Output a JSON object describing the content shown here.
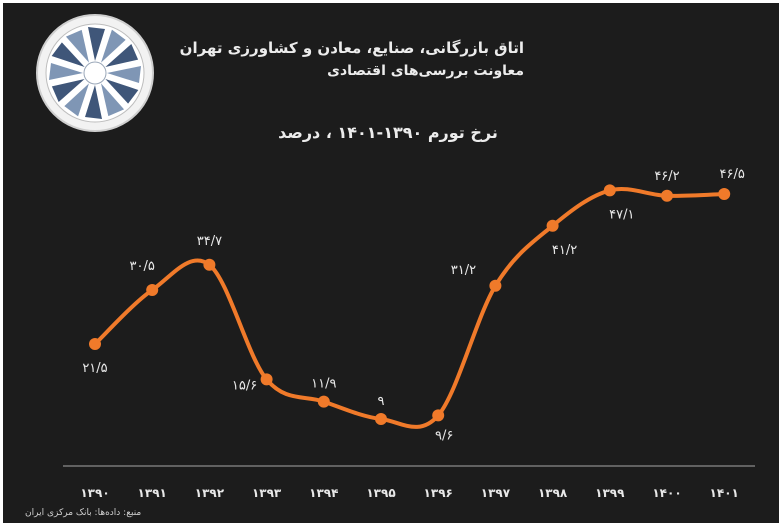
{
  "header": {
    "organization": "اتاق بازرگانی، صنایع، معادن و کشاورزی تهران",
    "department": "معاونت بررسی‌های اقتصادی"
  },
  "logo": {
    "icon": "tehran-chamber-logo-icon"
  },
  "source": "منبع: داده‌ها: بانک مرکزی ایران",
  "colors": {
    "background": "#1c1c1c",
    "line": "#f07a2a",
    "text": "#e8e8e8"
  },
  "chart_data": {
    "type": "line",
    "title": "نرخ تورم ۱۳۹۰-۱۴۰۱ ، درصد",
    "xlabel": "",
    "ylabel": "",
    "categories": [
      "۱۳۹۰",
      "۱۳۹۱",
      "۱۳۹۲",
      "۱۳۹۳",
      "۱۳۹۴",
      "۱۳۹۵",
      "۱۳۹۶",
      "۱۳۹۷",
      "۱۳۹۸",
      "۱۳۹۹",
      "۱۴۰۰",
      "۱۴۰۱"
    ],
    "values": [
      21.5,
      30.5,
      34.7,
      15.6,
      11.9,
      9.0,
      9.6,
      31.2,
      41.2,
      47.1,
      46.2,
      46.5
    ],
    "data_labels": [
      "۲۱/۵",
      "۳۰/۵",
      "۳۴/۷",
      "۱۵/۶",
      "۱۱/۹",
      "۹",
      "۹/۶",
      "۳۱/۲",
      "۴۱/۲",
      "۴۷/۱",
      "۴۶/۲",
      "۴۶/۵"
    ],
    "grid": false,
    "legend": "none",
    "ylim": [
      0,
      50
    ]
  }
}
